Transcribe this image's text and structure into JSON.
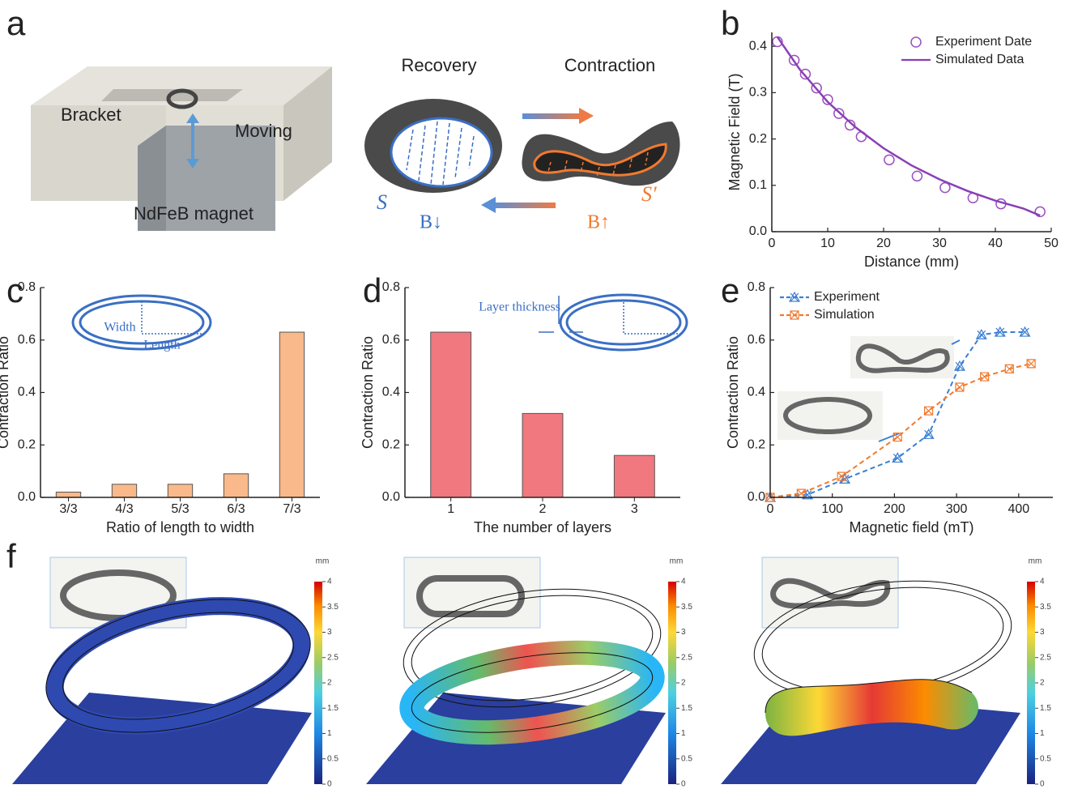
{
  "panel_labels": [
    "a",
    "b",
    "c",
    "d",
    "e",
    "f"
  ],
  "panel_a": {
    "bracket": "Bracket",
    "moving": "Moving",
    "magnet": "NdFeB magnet",
    "recovery": "Recovery",
    "contraction": "Contraction",
    "state_s": "S",
    "state_s_prime": "S′",
    "field_down": "B↓",
    "field_up": "B↑"
  },
  "chart_data": [
    {
      "type": "line",
      "xlabel": "Distance (mm)",
      "ylabel": "Magnetic Field (T)",
      "xlim": [
        0,
        50
      ],
      "xticks": [
        0,
        10,
        20,
        30,
        40,
        50
      ],
      "ylim": [
        0,
        0.43
      ],
      "yticks": [
        {
          "value": 0,
          "label": "0.0"
        },
        0.1,
        0.2,
        0.3,
        0.4
      ],
      "legend": "upper right",
      "series": [
        {
          "name": "Experiment Date",
          "color": "#9b4fc0",
          "style": "markers",
          "marker": "circle",
          "x": [
            1,
            4,
            6,
            8,
            10,
            12,
            14,
            16,
            21,
            26,
            31,
            36,
            41,
            48
          ],
          "values": [
            0.41,
            0.37,
            0.34,
            0.31,
            0.285,
            0.255,
            0.23,
            0.205,
            0.155,
            0.12,
            0.095,
            0.073,
            0.06,
            0.043
          ]
        },
        {
          "name": "Simulated Data",
          "color": "#8a3fb5",
          "style": "line",
          "x": [
            1,
            5,
            10,
            15,
            20,
            25,
            30,
            35,
            40,
            45,
            48
          ],
          "values": [
            0.42,
            0.35,
            0.28,
            0.225,
            0.18,
            0.143,
            0.113,
            0.088,
            0.067,
            0.05,
            0.035
          ]
        }
      ]
    },
    {
      "type": "bar",
      "xlabel": "Ratio of length to width",
      "ylabel": "Contraction Ratio",
      "categories": [
        "3/3",
        "4/3",
        "5/3",
        "6/3",
        "7/3"
      ],
      "values": [
        0.02,
        0.05,
        0.05,
        0.09,
        0.63
      ],
      "color": "#f9b98a",
      "ylim": [
        0,
        0.8
      ],
      "yticks": [
        {
          "value": 0,
          "label": "0.0"
        },
        0.2,
        0.4,
        0.6,
        0.8
      ],
      "inset_labels": [
        "Width",
        "Length"
      ]
    },
    {
      "type": "bar",
      "xlabel": "The number of layers",
      "ylabel": "Contraction Ratio",
      "categories": [
        "1",
        "2",
        "3"
      ],
      "values": [
        0.63,
        0.32,
        0.16
      ],
      "color": "#f0787e",
      "ylim": [
        0,
        0.8
      ],
      "yticks": [
        {
          "value": 0,
          "label": "0.0"
        },
        0.2,
        0.4,
        0.6,
        0.8
      ],
      "inset_labels": [
        "Layer thickness"
      ]
    },
    {
      "type": "line",
      "xlabel": "Magnetic field (mT)",
      "ylabel": "Contraction Ratio",
      "xlim": [
        0,
        455
      ],
      "xticks": [
        0,
        100,
        200,
        300,
        400
      ],
      "ylim": [
        0,
        0.8
      ],
      "yticks": [
        {
          "value": 0,
          "label": "0.0"
        },
        0.2,
        0.4,
        0.6,
        0.8
      ],
      "legend": "upper left",
      "series": [
        {
          "name": "Experiment",
          "color": "#3b7fd4",
          "style": "dashed-markers",
          "marker": "triangle-x",
          "x": [
            0,
            60,
            120,
            205,
            255,
            305,
            340,
            370,
            410
          ],
          "values": [
            0,
            0.01,
            0.07,
            0.15,
            0.24,
            0.5,
            0.62,
            0.63,
            0.63
          ]
        },
        {
          "name": "Simulation",
          "color": "#f07a30",
          "style": "dashed-markers",
          "marker": "square-x",
          "x": [
            0,
            50,
            115,
            205,
            255,
            305,
            345,
            385,
            420
          ],
          "values": [
            0,
            0.015,
            0.08,
            0.23,
            0.33,
            0.42,
            0.46,
            0.49,
            0.51
          ]
        }
      ]
    }
  ],
  "panel_f": {
    "colorbar_unit": "mm",
    "colorbar_ticks": [
      0,
      0.5,
      1,
      1.5,
      2,
      2.5,
      3,
      3.5,
      4
    ]
  }
}
